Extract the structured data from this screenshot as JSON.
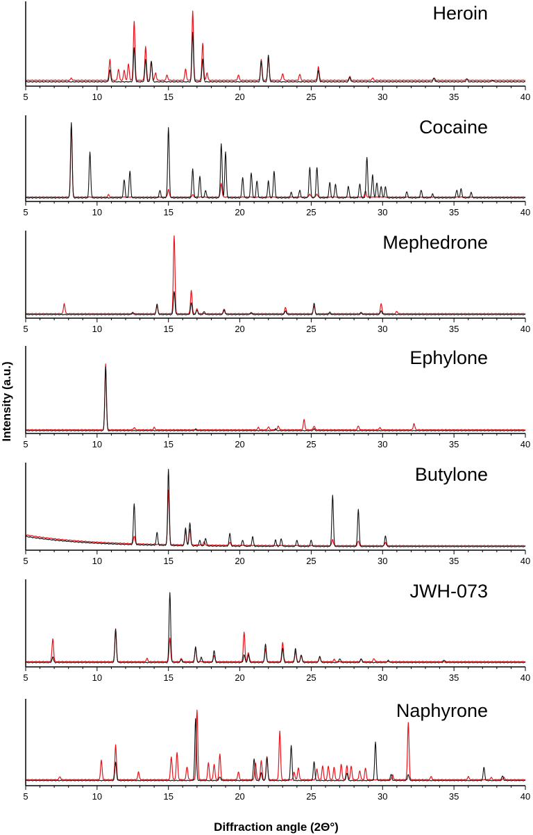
{
  "figure": {
    "ylabel": "Intensity (a.u.)",
    "xlabel": "Diffraction angle (2Θ°)"
  },
  "colors": {
    "series_a": "#e8131b",
    "series_b": "#111111",
    "axis": "#000000"
  },
  "chart_data": [
    {
      "type": "line",
      "title": "Heroin",
      "xlim": [
        5,
        40
      ],
      "xticks": [
        5,
        10,
        15,
        20,
        25,
        30,
        35,
        40
      ],
      "ylim": [
        0,
        1
      ],
      "grid": false,
      "series": [
        {
          "color": "#e8131b",
          "baseline": 0.05,
          "peaks": [
            [
              8.2,
              0.03
            ],
            [
              10.9,
              0.28
            ],
            [
              11.5,
              0.15
            ],
            [
              11.9,
              0.13
            ],
            [
              12.2,
              0.22
            ],
            [
              12.6,
              0.79
            ],
            [
              13.4,
              0.45
            ],
            [
              13.8,
              0.25
            ],
            [
              14.1,
              0.1
            ],
            [
              14.9,
              0.07
            ],
            [
              16.2,
              0.15
            ],
            [
              16.7,
              0.92
            ],
            [
              17.4,
              0.5
            ],
            [
              17.7,
              0.1
            ],
            [
              19.9,
              0.07
            ],
            [
              21.5,
              0.28
            ],
            [
              22.0,
              0.3
            ],
            [
              23.0,
              0.09
            ],
            [
              24.2,
              0.08
            ],
            [
              25.5,
              0.18
            ],
            [
              27.7,
              0.05
            ],
            [
              29.3,
              0.03
            ],
            [
              33.6,
              0.03
            ],
            [
              35.9,
              0.02
            ]
          ]
        },
        {
          "color": "#111111",
          "baseline": 0.03,
          "peaks": [
            [
              10.9,
              0.16
            ],
            [
              12.6,
              0.45
            ],
            [
              13.4,
              0.3
            ],
            [
              13.8,
              0.28
            ],
            [
              16.7,
              0.66
            ],
            [
              17.4,
              0.3
            ],
            [
              21.5,
              0.27
            ],
            [
              22.0,
              0.35
            ],
            [
              25.5,
              0.15
            ],
            [
              27.7,
              0.06
            ],
            [
              33.6,
              0.05
            ],
            [
              35.9,
              0.04
            ],
            [
              37.7,
              0.02
            ]
          ]
        }
      ]
    },
    {
      "type": "line",
      "title": "Cocaine",
      "xlim": [
        5,
        40
      ],
      "xticks": [
        5,
        10,
        15,
        20,
        25,
        30,
        35,
        40
      ],
      "ylim": [
        0,
        1
      ],
      "grid": false,
      "series": [
        {
          "color": "#e8131b",
          "baseline": 0.03,
          "peaks": [
            [
              8.2,
              0.95
            ],
            [
              10.8,
              0.03
            ],
            [
              15.0,
              0.1
            ],
            [
              16.7,
              0.03
            ],
            [
              18.7,
              0.18
            ],
            [
              24.9,
              0.04
            ],
            [
              25.4,
              0.04
            ],
            [
              28.8,
              0.08
            ]
          ]
        },
        {
          "color": "#111111",
          "baseline": 0.02,
          "peaks": [
            [
              8.2,
              0.99
            ],
            [
              9.5,
              0.6
            ],
            [
              11.9,
              0.24
            ],
            [
              12.3,
              0.35
            ],
            [
              14.4,
              0.1
            ],
            [
              15.0,
              0.92
            ],
            [
              16.7,
              0.38
            ],
            [
              17.2,
              0.28
            ],
            [
              17.6,
              0.1
            ],
            [
              18.7,
              0.71
            ],
            [
              19.0,
              0.6
            ],
            [
              20.2,
              0.27
            ],
            [
              20.8,
              0.33
            ],
            [
              21.2,
              0.22
            ],
            [
              22.0,
              0.22
            ],
            [
              22.4,
              0.35
            ],
            [
              23.6,
              0.07
            ],
            [
              24.2,
              0.1
            ],
            [
              24.9,
              0.4
            ],
            [
              25.4,
              0.4
            ],
            [
              26.3,
              0.2
            ],
            [
              26.7,
              0.18
            ],
            [
              27.6,
              0.15
            ],
            [
              28.4,
              0.18
            ],
            [
              28.9,
              0.53
            ],
            [
              29.3,
              0.3
            ],
            [
              29.6,
              0.2
            ],
            [
              29.9,
              0.15
            ],
            [
              30.2,
              0.15
            ],
            [
              31.7,
              0.08
            ],
            [
              32.7,
              0.1
            ],
            [
              33.5,
              0.05
            ],
            [
              35.2,
              0.1
            ],
            [
              35.5,
              0.12
            ],
            [
              36.2,
              0.07
            ]
          ]
        }
      ]
    },
    {
      "type": "line",
      "title": "Mephedrone",
      "xlim": [
        5,
        40
      ],
      "xticks": [
        5,
        10,
        15,
        20,
        25,
        30,
        35,
        40
      ],
      "ylim": [
        0,
        1
      ],
      "grid": false,
      "series": [
        {
          "color": "#e8131b",
          "baseline": 0.03,
          "peaks": [
            [
              7.7,
              0.13
            ],
            [
              14.2,
              0.1
            ],
            [
              15.4,
              1.0
            ],
            [
              16.6,
              0.3
            ],
            [
              17.0,
              0.06
            ],
            [
              18.9,
              0.06
            ],
            [
              23.2,
              0.08
            ],
            [
              25.2,
              0.1
            ],
            [
              29.9,
              0.13
            ],
            [
              31.0,
              0.03
            ]
          ]
        },
        {
          "color": "#111111",
          "baseline": 0.02,
          "peaks": [
            [
              12.5,
              0.03
            ],
            [
              14.2,
              0.13
            ],
            [
              15.4,
              0.3
            ],
            [
              16.6,
              0.15
            ],
            [
              17.0,
              0.06
            ],
            [
              17.5,
              0.04
            ],
            [
              18.9,
              0.06
            ],
            [
              20.8,
              0.03
            ],
            [
              23.2,
              0.05
            ],
            [
              25.2,
              0.14
            ],
            [
              26.3,
              0.03
            ],
            [
              28.5,
              0.03
            ],
            [
              29.9,
              0.05
            ]
          ]
        }
      ]
    },
    {
      "type": "line",
      "title": "Ephylone",
      "xlim": [
        5,
        40
      ],
      "xticks": [
        5,
        10,
        15,
        20,
        25,
        30,
        35,
        40
      ],
      "ylim": [
        0,
        1
      ],
      "grid": false,
      "series": [
        {
          "color": "#e8131b",
          "baseline": 0.02,
          "peaks": [
            [
              10.6,
              0.85
            ],
            [
              12.6,
              0.03
            ],
            [
              14.0,
              0.03
            ],
            [
              21.3,
              0.03
            ],
            [
              22.0,
              0.04
            ],
            [
              22.7,
              0.05
            ],
            [
              24.5,
              0.13
            ],
            [
              25.2,
              0.05
            ],
            [
              28.3,
              0.05
            ],
            [
              29.8,
              0.03
            ],
            [
              32.2,
              0.08
            ]
          ]
        },
        {
          "color": "#111111",
          "baseline": 0.01,
          "peaks": [
            [
              10.6,
              0.82
            ],
            [
              16.9,
              0.02
            ],
            [
              22.5,
              0.02
            ],
            [
              25.2,
              0.02
            ]
          ]
        }
      ]
    },
    {
      "type": "line",
      "title": "Butylone",
      "xlim": [
        5,
        40
      ],
      "xticks": [
        5,
        10,
        15,
        20,
        25,
        30,
        35,
        40
      ],
      "ylim": [
        0,
        1
      ],
      "grid": false,
      "series": [
        {
          "color": "#e8131b",
          "baseline": 0.03,
          "slope_start": 0.14,
          "peaks": [
            [
              12.6,
              0.1
            ],
            [
              15.0,
              0.7
            ],
            [
              16.2,
              0.18
            ],
            [
              16.5,
              0.2
            ],
            [
              17.5,
              0.04
            ],
            [
              19.3,
              0.04
            ],
            [
              26.5,
              0.08
            ],
            [
              28.3,
              0.06
            ],
            [
              30.2,
              0.04
            ]
          ]
        },
        {
          "color": "#111111",
          "baseline": 0.02,
          "slope_start": 0.13,
          "peaks": [
            [
              12.6,
              0.52
            ],
            [
              14.2,
              0.16
            ],
            [
              15.0,
              0.98
            ],
            [
              16.2,
              0.23
            ],
            [
              16.5,
              0.3
            ],
            [
              17.2,
              0.07
            ],
            [
              17.6,
              0.1
            ],
            [
              19.3,
              0.16
            ],
            [
              20.2,
              0.08
            ],
            [
              20.9,
              0.12
            ],
            [
              22.5,
              0.08
            ],
            [
              22.9,
              0.1
            ],
            [
              24.0,
              0.08
            ],
            [
              25.0,
              0.08
            ],
            [
              26.5,
              0.66
            ],
            [
              28.3,
              0.48
            ],
            [
              30.2,
              0.14
            ]
          ]
        }
      ]
    },
    {
      "type": "line",
      "title": "JWH-073",
      "xlim": [
        5,
        40
      ],
      "xticks": [
        5,
        10,
        15,
        20,
        25,
        30,
        35,
        40
      ],
      "ylim": [
        0,
        1
      ],
      "grid": false,
      "series": [
        {
          "color": "#e8131b",
          "baseline": 0.04,
          "peaks": [
            [
              6.9,
              0.3
            ],
            [
              11.3,
              0.42
            ],
            [
              13.5,
              0.04
            ],
            [
              15.1,
              0.3
            ],
            [
              15.9,
              0.04
            ],
            [
              16.9,
              0.18
            ],
            [
              18.2,
              0.08
            ],
            [
              20.3,
              0.38
            ],
            [
              20.6,
              0.12
            ],
            [
              21.8,
              0.16
            ],
            [
              23.0,
              0.25
            ],
            [
              23.9,
              0.13
            ],
            [
              24.3,
              0.08
            ],
            [
              25.6,
              0.06
            ],
            [
              26.6,
              0.03
            ],
            [
              28.5,
              0.03
            ],
            [
              29.4,
              0.04
            ]
          ]
        },
        {
          "color": "#111111",
          "baseline": 0.03,
          "peaks": [
            [
              6.9,
              0.07
            ],
            [
              11.3,
              0.43
            ],
            [
              15.1,
              0.9
            ],
            [
              15.9,
              0.04
            ],
            [
              16.9,
              0.2
            ],
            [
              17.3,
              0.07
            ],
            [
              18.2,
              0.15
            ],
            [
              20.3,
              0.1
            ],
            [
              20.6,
              0.1
            ],
            [
              21.8,
              0.24
            ],
            [
              23.0,
              0.18
            ],
            [
              23.9,
              0.18
            ],
            [
              24.3,
              0.1
            ],
            [
              25.6,
              0.08
            ],
            [
              27.0,
              0.05
            ],
            [
              28.5,
              0.05
            ],
            [
              30.4,
              0.03
            ],
            [
              34.3,
              0.03
            ]
          ]
        }
      ]
    },
    {
      "type": "line",
      "title": "Naphyrone",
      "xlim": [
        5,
        40
      ],
      "xticks": [
        5,
        10,
        15,
        20,
        25,
        30,
        35,
        40
      ],
      "ylim": [
        0,
        1
      ],
      "grid": false,
      "series": [
        {
          "color": "#e8131b",
          "baseline": 0.05,
          "peaks": [
            [
              7.4,
              0.04
            ],
            [
              10.3,
              0.25
            ],
            [
              11.3,
              0.45
            ],
            [
              12.9,
              0.1
            ],
            [
              15.2,
              0.3
            ],
            [
              15.6,
              0.35
            ],
            [
              16.3,
              0.17
            ],
            [
              17.0,
              0.9
            ],
            [
              17.8,
              0.22
            ],
            [
              18.2,
              0.2
            ],
            [
              18.6,
              0.33
            ],
            [
              19.9,
              0.1
            ],
            [
              21.1,
              0.22
            ],
            [
              21.5,
              0.25
            ],
            [
              21.9,
              0.3
            ],
            [
              22.8,
              0.63
            ],
            [
              23.8,
              0.1
            ],
            [
              24.1,
              0.16
            ],
            [
              25.4,
              0.14
            ],
            [
              25.8,
              0.18
            ],
            [
              26.2,
              0.18
            ],
            [
              26.6,
              0.16
            ],
            [
              27.1,
              0.2
            ],
            [
              27.5,
              0.18
            ],
            [
              27.8,
              0.18
            ],
            [
              28.4,
              0.12
            ],
            [
              28.8,
              0.15
            ],
            [
              30.7,
              0.06
            ],
            [
              31.8,
              0.74
            ],
            [
              33.4,
              0.04
            ],
            [
              36.0,
              0.04
            ],
            [
              37.6,
              0.03
            ],
            [
              38.5,
              0.03
            ]
          ]
        },
        {
          "color": "#111111",
          "baseline": 0.04,
          "peaks": [
            [
              11.3,
              0.24
            ],
            [
              16.9,
              0.8
            ],
            [
              18.6,
              0.05
            ],
            [
              21.0,
              0.28
            ],
            [
              21.5,
              0.1
            ],
            [
              21.9,
              0.3
            ],
            [
              23.6,
              0.45
            ],
            [
              25.2,
              0.24
            ],
            [
              27.5,
              0.1
            ],
            [
              29.5,
              0.5
            ],
            [
              30.6,
              0.08
            ],
            [
              31.8,
              0.08
            ],
            [
              37.1,
              0.17
            ],
            [
              38.4,
              0.06
            ]
          ]
        }
      ]
    }
  ]
}
